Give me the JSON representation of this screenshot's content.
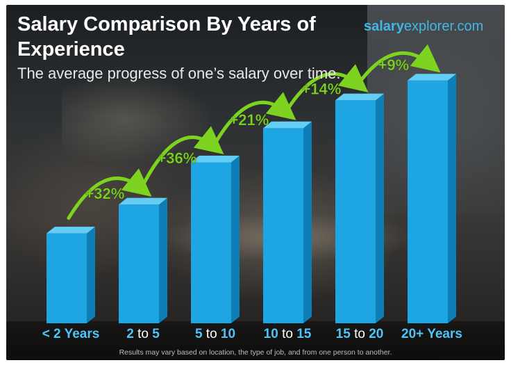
{
  "header": {
    "title": "Salary Comparison By Years of Experience",
    "subtitle": "The average progress of one’s salary over time.",
    "brand_bold": "salary",
    "brand_rest": "explorer.com"
  },
  "footer": {
    "disclaimer": "Results may vary based on location, the type of job, and from one person to another."
  },
  "chart_data": {
    "type": "bar",
    "title": "Salary Comparison By Years of Experience",
    "subtitle": "The average progress of one’s salary over time.",
    "categories": [
      "< 2 Years",
      "2 to 5",
      "5 to 10",
      "10 to 15",
      "15 to 20",
      "20+ Years"
    ],
    "category_parts": [
      {
        "bold": "< 2 Years",
        "sep": "",
        "bold2": ""
      },
      {
        "bold": "2",
        "sep": " to ",
        "bold2": "5"
      },
      {
        "bold": "5",
        "sep": " to ",
        "bold2": "10"
      },
      {
        "bold": "10",
        "sep": " to ",
        "bold2": "15"
      },
      {
        "bold": "15",
        "sep": " to ",
        "bold2": "20"
      },
      {
        "bold": "20+ Years",
        "sep": "",
        "bold2": ""
      }
    ],
    "values": [
      1.0,
      1.32,
      1.79,
      2.17,
      2.48,
      2.7
    ],
    "increase_labels": [
      "+32%",
      "+36%",
      "+21%",
      "+14%",
      "+9%"
    ],
    "ylim": [
      0,
      3.0
    ],
    "grid": false,
    "legend": "none",
    "colors": {
      "bar_front": "#1ea6e4",
      "bar_side": "#0f7db6",
      "bar_top": "#63cdf4",
      "increase_text": "#7ed321",
      "arrow": "#7ed321"
    }
  }
}
